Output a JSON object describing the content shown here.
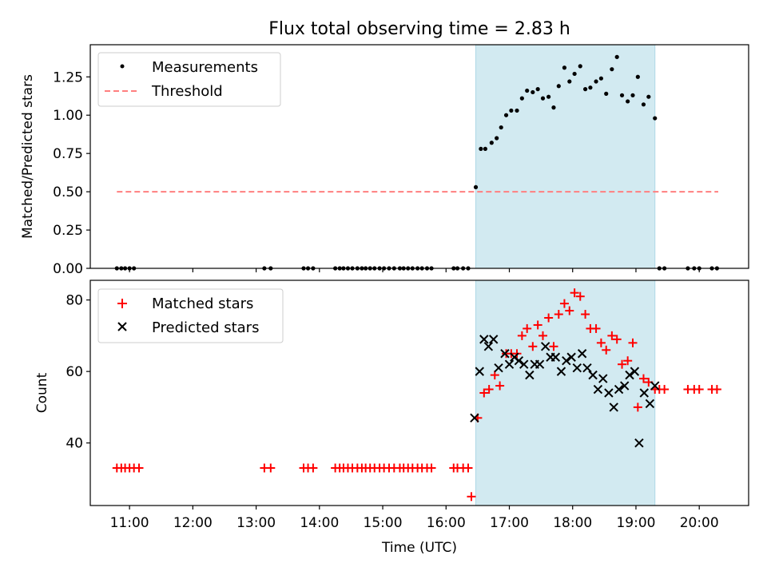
{
  "figure": {
    "title": "Flux total observing time = 2.83 h",
    "xlabel": "Time (UTC)",
    "x_tick_labels": [
      "11:00",
      "12:00",
      "13:00",
      "14:00",
      "15:00",
      "16:00",
      "17:00",
      "18:00",
      "19:00",
      "20:00"
    ]
  },
  "colors": {
    "measurement": "#000000",
    "threshold": "#ff7f7f",
    "matched": "#ff0000",
    "predicted": "#000000",
    "shade": "#add8e6"
  },
  "chart_data": [
    {
      "type": "scatter",
      "panel": "top",
      "ylabel": "Matched/Predicted stars",
      "xlim": [
        10.38,
        20.78
      ],
      "ylim": [
        0.0,
        1.46
      ],
      "x_ticks": [
        11,
        12,
        13,
        14,
        15,
        16,
        17,
        18,
        19,
        20
      ],
      "y_ticks": [
        0.0,
        0.25,
        0.5,
        0.75,
        1.0,
        1.25
      ],
      "y_tick_labels": [
        "0.00",
        "0.25",
        "0.50",
        "0.75",
        "1.00",
        "1.25"
      ],
      "legend_position": "top-left",
      "shaded_interval": [
        16.47,
        19.3
      ],
      "series": [
        {
          "name": "Measurements",
          "marker": "dot",
          "x": [
            10.8,
            10.87,
            10.93,
            11.0,
            11.07,
            13.13,
            13.23,
            13.75,
            13.82,
            13.9,
            14.25,
            14.32,
            14.38,
            14.45,
            14.52,
            14.6,
            14.67,
            14.73,
            14.8,
            14.87,
            14.95,
            15.02,
            15.1,
            15.18,
            15.27,
            15.33,
            15.4,
            15.47,
            15.55,
            15.62,
            15.7,
            15.77,
            16.12,
            16.18,
            16.27,
            16.35,
            16.47,
            16.55,
            16.62,
            16.72,
            16.8,
            16.87,
            16.95,
            17.03,
            17.12,
            17.2,
            17.28,
            17.37,
            17.45,
            17.53,
            17.62,
            17.7,
            17.78,
            17.87,
            17.95,
            18.03,
            18.12,
            18.2,
            18.28,
            18.37,
            18.45,
            18.53,
            18.62,
            18.7,
            18.78,
            18.87,
            18.95,
            19.03,
            19.12,
            19.2,
            19.3,
            19.37,
            19.45,
            19.82,
            19.92,
            20.0,
            20.2,
            20.28
          ],
          "y": [
            0,
            0,
            0,
            0,
            0,
            0,
            0,
            0,
            0,
            0,
            0,
            0,
            0,
            0,
            0,
            0,
            0,
            0,
            0,
            0,
            0,
            0,
            0,
            0,
            0,
            0,
            0,
            0,
            0,
            0,
            0,
            0,
            0,
            0,
            0,
            0,
            0.53,
            0.78,
            0.78,
            0.82,
            0.85,
            0.92,
            1.0,
            1.03,
            1.03,
            1.11,
            1.16,
            1.15,
            1.17,
            1.11,
            1.12,
            1.05,
            1.19,
            1.31,
            1.22,
            1.27,
            1.32,
            1.17,
            1.18,
            1.22,
            1.24,
            1.14,
            1.3,
            1.38,
            1.13,
            1.09,
            1.13,
            1.25,
            1.07,
            1.12,
            0.98,
            0,
            0,
            0,
            0,
            0,
            0,
            0
          ]
        },
        {
          "name": "Threshold",
          "line": "dashed",
          "x": [
            10.8,
            20.3
          ],
          "y": [
            0.5,
            0.5
          ]
        }
      ]
    },
    {
      "type": "scatter",
      "panel": "bottom",
      "ylabel": "Count",
      "xlim": [
        10.38,
        20.78
      ],
      "ylim": [
        22.5,
        85.5
      ],
      "x_ticks": [
        11,
        12,
        13,
        14,
        15,
        16,
        17,
        18,
        19,
        20
      ],
      "y_ticks": [
        40,
        60,
        80
      ],
      "y_tick_labels": [
        "40",
        "60",
        "80"
      ],
      "legend_position": "top-left",
      "shaded_interval": [
        16.47,
        19.3
      ],
      "series": [
        {
          "name": "Matched stars",
          "marker": "plus",
          "x": [
            10.8,
            10.87,
            10.93,
            11.0,
            11.07,
            11.15,
            13.13,
            13.23,
            13.75,
            13.82,
            13.9,
            14.25,
            14.32,
            14.38,
            14.45,
            14.52,
            14.6,
            14.67,
            14.73,
            14.8,
            14.87,
            14.95,
            15.02,
            15.1,
            15.18,
            15.27,
            15.33,
            15.4,
            15.47,
            15.55,
            15.62,
            15.7,
            15.77,
            16.12,
            16.18,
            16.27,
            16.35,
            16.4,
            16.5,
            16.6,
            16.68,
            16.77,
            16.85,
            16.95,
            17.03,
            17.12,
            17.2,
            17.28,
            17.37,
            17.45,
            17.53,
            17.62,
            17.7,
            17.78,
            17.87,
            17.95,
            18.03,
            18.12,
            18.2,
            18.28,
            18.37,
            18.45,
            18.53,
            18.62,
            18.7,
            18.78,
            18.87,
            18.95,
            19.03,
            19.12,
            19.2,
            19.3,
            19.37,
            19.45,
            19.82,
            19.92,
            20.0,
            20.2,
            20.28
          ],
          "y": [
            33,
            33,
            33,
            33,
            33,
            33,
            33,
            33,
            33,
            33,
            33,
            33,
            33,
            33,
            33,
            33,
            33,
            33,
            33,
            33,
            33,
            33,
            33,
            33,
            33,
            33,
            33,
            33,
            33,
            33,
            33,
            33,
            33,
            33,
            33,
            33,
            33,
            25,
            47,
            54,
            55,
            59,
            56,
            65,
            65,
            65,
            70,
            72,
            67,
            73,
            70,
            75,
            67,
            76,
            79,
            77,
            82,
            81,
            76,
            72,
            72,
            68,
            66,
            70,
            69,
            62,
            63,
            68,
            50,
            58,
            57,
            55,
            55,
            55,
            55,
            55,
            55,
            55,
            55
          ]
        },
        {
          "name": "Predicted stars",
          "marker": "x",
          "x": [
            16.45,
            16.53,
            16.6,
            16.67,
            16.75,
            16.83,
            16.93,
            17.0,
            17.08,
            17.15,
            17.23,
            17.32,
            17.4,
            17.48,
            17.57,
            17.65,
            17.73,
            17.82,
            17.9,
            17.98,
            18.07,
            18.15,
            18.23,
            18.32,
            18.4,
            18.48,
            18.57,
            18.65,
            18.73,
            18.82,
            18.9,
            18.98,
            19.05,
            19.13,
            19.22,
            19.3
          ],
          "y": [
            47,
            60,
            69,
            67,
            69,
            61,
            65,
            62,
            64,
            63,
            62,
            59,
            62,
            62,
            67,
            64,
            64,
            60,
            63,
            64,
            61,
            65,
            61,
            59,
            55,
            58,
            54,
            50,
            55,
            56,
            59,
            60,
            40,
            54,
            51,
            56
          ]
        }
      ]
    }
  ]
}
